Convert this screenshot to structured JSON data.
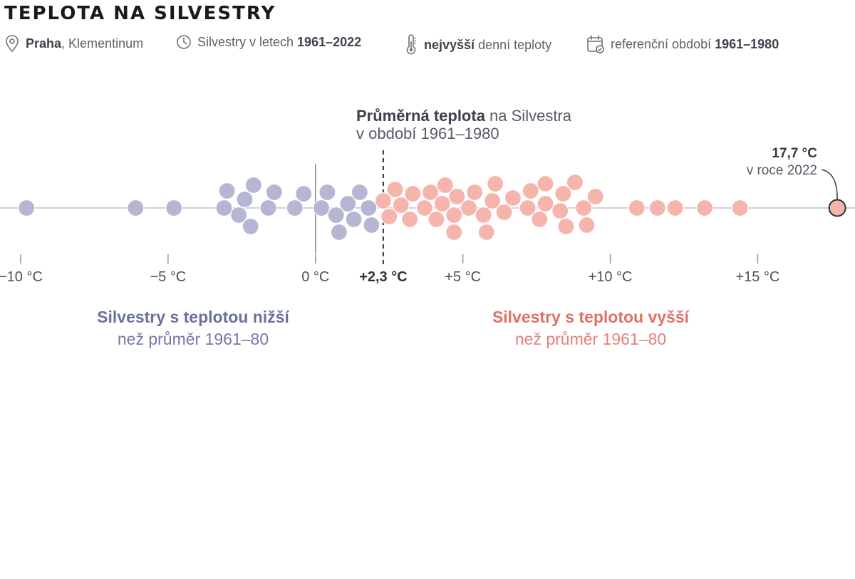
{
  "title": "TEPLOTA NA SILVESTRY",
  "meta": {
    "location_bold": "Praha",
    "location_rest": ", Klementinum",
    "period_text": "Silvestry v letech ",
    "period_bold": "1961–2022",
    "measure_bold": "nejvyšší",
    "measure_rest": " denní teploty",
    "reference_text": "referenční období ",
    "reference_bold": "1961–1980"
  },
  "chart_data": {
    "type": "scatter",
    "title": "",
    "xlabel": "",
    "ylabel": "",
    "xlim": [
      -10.7,
      18.3
    ],
    "x_ticks": [
      -10,
      -5,
      0,
      5,
      10,
      15
    ],
    "x_tick_labels": [
      "−10 °C",
      "−5 °C",
      "0 °C",
      "+5 °C",
      "+10 °C",
      "+15 °C"
    ],
    "reference": {
      "value": 2.3,
      "label": "+2,3 °C",
      "title_bold": "Průměrná teplota",
      "title_rest": " na Silvestra",
      "title_line2": "v období 1961–1980"
    },
    "highlight": {
      "value": 17.7,
      "label_bold": "17,7 °C",
      "label_line2": "v roce 2022"
    },
    "groups": {
      "below": {
        "title": "Silvestry s teplotou nižší",
        "subtitle": "než průměr 1961–80",
        "color": "#b5b6d3",
        "title_color": "#6a6fa0"
      },
      "above": {
        "title": "Silvestry s teplotou vyšší",
        "subtitle": "než průměr 1961–80",
        "color": "#f6b5ac",
        "title_color": "#e06f66"
      }
    },
    "values": [
      -9.8,
      -6.1,
      -4.8,
      -3.1,
      -3.0,
      -2.6,
      -2.4,
      -2.2,
      -2.1,
      -1.6,
      -1.4,
      -0.7,
      -0.4,
      0.2,
      0.4,
      0.7,
      0.8,
      1.1,
      1.3,
      1.5,
      1.8,
      1.9,
      2.3,
      2.5,
      2.7,
      2.9,
      3.2,
      3.3,
      3.7,
      3.9,
      4.1,
      4.3,
      4.4,
      4.7,
      4.7,
      4.8,
      5.2,
      5.4,
      5.7,
      5.8,
      6.0,
      6.1,
      6.4,
      6.7,
      7.2,
      7.3,
      7.6,
      7.8,
      7.8,
      8.3,
      8.4,
      8.5,
      8.8,
      9.1,
      9.2,
      9.5,
      10.9,
      11.6,
      12.2,
      13.2,
      14.4,
      17.7
    ],
    "grid": false,
    "legend": "none"
  }
}
